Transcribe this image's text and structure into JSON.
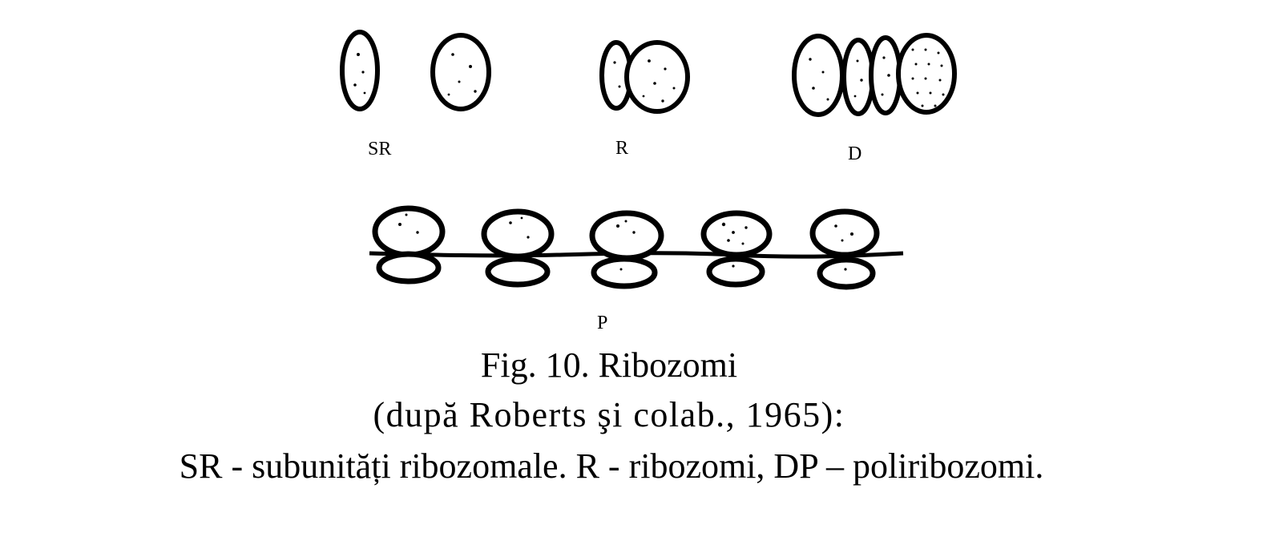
{
  "figure": {
    "panels": [
      {
        "id": "SR",
        "label": "SR"
      },
      {
        "id": "R",
        "label": "R"
      },
      {
        "id": "D",
        "label": "D"
      },
      {
        "id": "P",
        "label": "P"
      }
    ]
  },
  "caption": {
    "title": "Fig. 10. Ribozomi",
    "source": "(după Roberts şi colab., 1965):",
    "legend": "SR - subunități ribozomale. R - ribozomi, DP – poliribozomi."
  }
}
